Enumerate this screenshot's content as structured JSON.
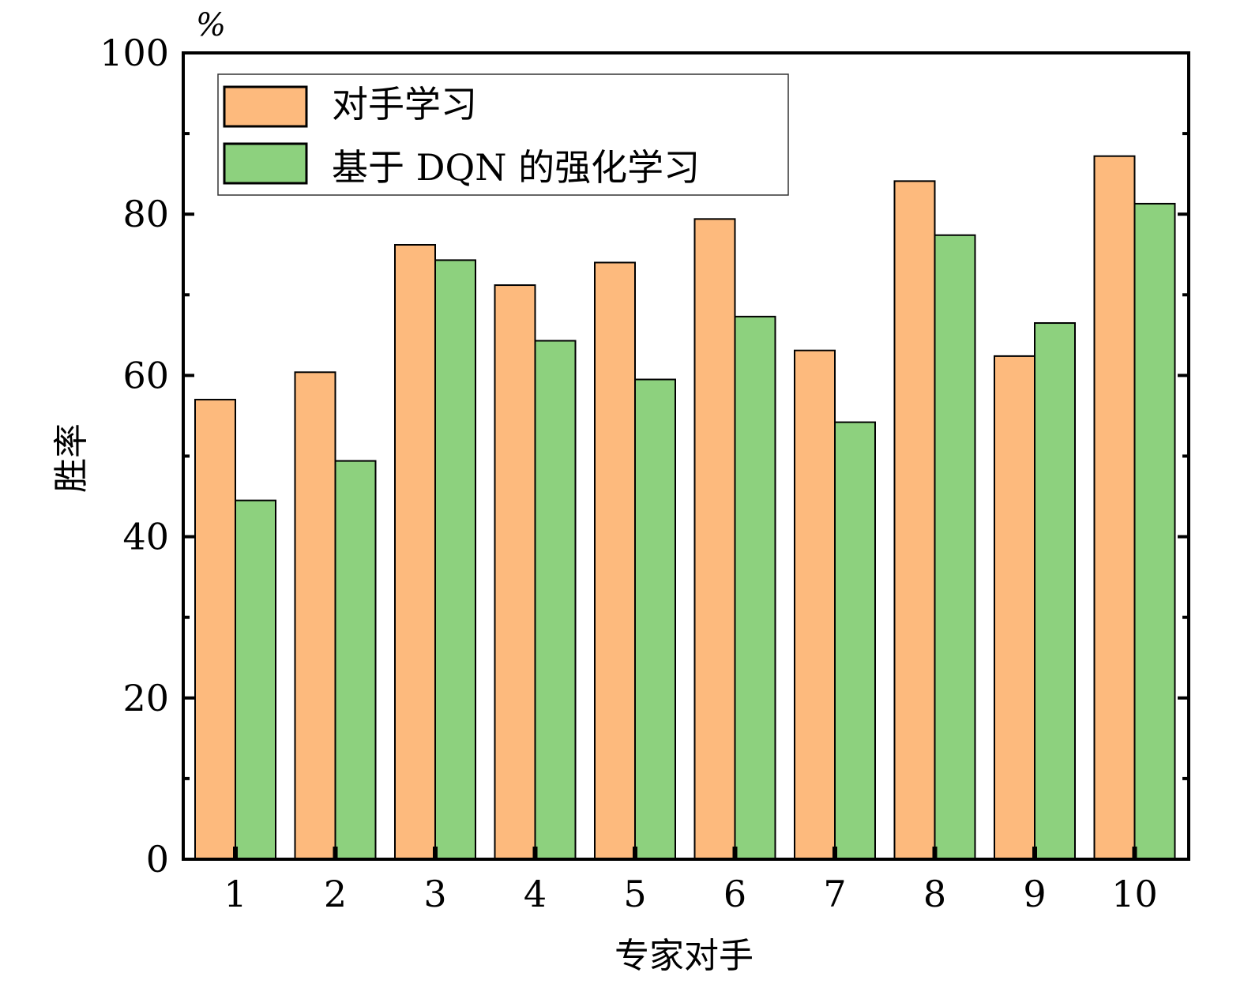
{
  "chart_data": {
    "type": "bar",
    "title": "",
    "xlabel": "专家对手",
    "ylabel": "胜率",
    "yunit": "%",
    "ylim": [
      0,
      100
    ],
    "yticks": [
      0,
      20,
      40,
      60,
      80,
      100
    ],
    "categories": [
      "1",
      "2",
      "3",
      "4",
      "5",
      "6",
      "7",
      "8",
      "9",
      "10"
    ],
    "legend_position": "top-left",
    "grid": false,
    "series": [
      {
        "name": "对手学习",
        "color": "#FDBA7D",
        "values": [
          57.0,
          60.4,
          76.2,
          71.2,
          74.0,
          79.4,
          63.1,
          84.1,
          62.4,
          87.2
        ]
      },
      {
        "name": "基于 DQN 的强化学习",
        "color": "#8DD17E",
        "values": [
          44.5,
          49.4,
          74.3,
          64.3,
          59.5,
          67.3,
          54.2,
          77.4,
          66.5,
          81.3
        ]
      }
    ]
  }
}
